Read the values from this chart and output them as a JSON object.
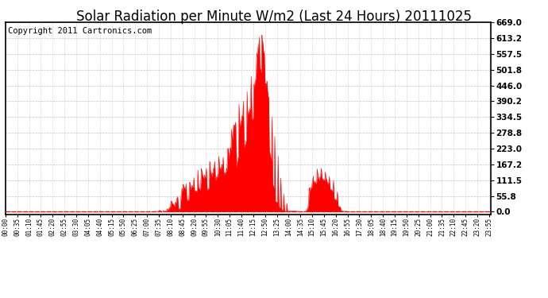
{
  "title": "Solar Radiation per Minute W/m2 (Last 24 Hours) 20111025",
  "copyright_text": "Copyright 2011 Cartronics.com",
  "yticks": [
    0.0,
    55.8,
    111.5,
    167.2,
    223.0,
    278.8,
    334.5,
    390.2,
    446.0,
    501.8,
    557.5,
    613.2,
    669.0
  ],
  "ymax": 669.0,
  "ymin": -10,
  "fill_color": "#ff0000",
  "dashed_line_color": "#ff0000",
  "grid_color": "#bbbbbb",
  "bg_color": "#ffffff",
  "border_color": "#000000",
  "title_fontsize": 12,
  "copyright_fontsize": 7.5,
  "key_times_hours": [
    0,
    7.5,
    7.9,
    8.0,
    8.05,
    8.1,
    8.15,
    8.3,
    8.5,
    8.6,
    8.7,
    8.8,
    8.9,
    9.0,
    9.1,
    9.2,
    9.3,
    9.4,
    9.5,
    9.6,
    9.7,
    9.8,
    9.9,
    10.0,
    10.1,
    10.2,
    10.3,
    10.4,
    10.5,
    10.6,
    10.7,
    10.8,
    10.9,
    11.0,
    11.1,
    11.2,
    11.3,
    11.4,
    11.5,
    11.6,
    11.7,
    11.8,
    11.9,
    12.0,
    12.1,
    12.2,
    12.3,
    12.35,
    12.4,
    12.45,
    12.5,
    12.55,
    12.6,
    12.7,
    12.8,
    12.9,
    13.0,
    13.1,
    13.2,
    13.3,
    13.4,
    13.5,
    13.6,
    13.7,
    13.8,
    13.9,
    14.0,
    14.1,
    14.2,
    14.3,
    14.4,
    14.5,
    14.6,
    14.7,
    14.8,
    14.9,
    15.0,
    15.1,
    15.2,
    15.3,
    15.4,
    15.5,
    15.6,
    15.7,
    15.8,
    15.9,
    16.0,
    16.1,
    16.2,
    16.3,
    16.4,
    16.5,
    16.6,
    16.7,
    16.8,
    17.0,
    24
  ],
  "key_values": [
    0,
    0,
    0,
    5,
    30,
    60,
    40,
    20,
    60,
    50,
    80,
    100,
    90,
    110,
    100,
    130,
    120,
    140,
    150,
    130,
    160,
    140,
    150,
    160,
    170,
    140,
    180,
    170,
    200,
    180,
    210,
    190,
    200,
    220,
    300,
    280,
    350,
    310,
    390,
    360,
    400,
    380,
    420,
    430,
    460,
    500,
    530,
    550,
    570,
    590,
    620,
    630,
    669,
    640,
    560,
    500,
    440,
    390,
    320,
    270,
    220,
    180,
    120,
    80,
    50,
    30,
    20,
    40,
    60,
    50,
    30,
    20,
    10,
    5,
    0,
    5,
    80,
    100,
    120,
    150,
    140,
    130,
    160,
    150,
    140,
    120,
    130,
    120,
    110,
    90,
    70,
    50,
    30,
    20,
    10,
    0,
    0
  ]
}
